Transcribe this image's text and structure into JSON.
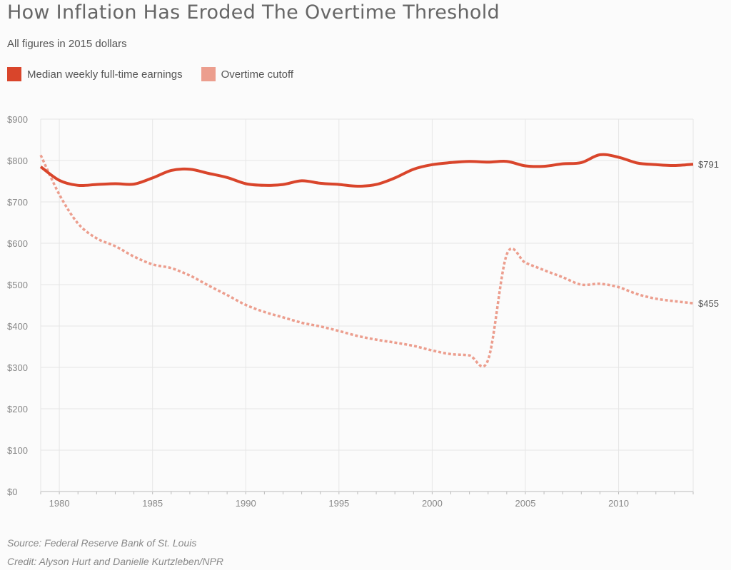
{
  "header": {
    "title": "How Inflation Has Eroded The Overtime Threshold",
    "subtitle": "All figures in 2015 dollars"
  },
  "footer": {
    "source": "Source: Federal Reserve Bank of St. Louis",
    "credit": "Credit: Alyson Hurt and Danielle Kurtzleben/NPR"
  },
  "colors": {
    "earnings": "#d9452b",
    "cutoff": "#ec9e8e",
    "grid": "#e6e6e6",
    "tick_text": "#888888"
  },
  "chart_data": {
    "type": "line",
    "title": "How Inflation Has Eroded The Overtime Threshold",
    "subtitle": "All figures in 2015 dollars",
    "xlabel": "",
    "ylabel": "",
    "xlim": [
      1979,
      2014
    ],
    "ylim": [
      0,
      900
    ],
    "x_ticks": [
      1980,
      1985,
      1990,
      1995,
      2000,
      2005,
      2010
    ],
    "x_tick_labels": [
      "1980",
      "1985",
      "1990",
      "1995",
      "2000",
      "2005",
      "2010"
    ],
    "y_ticks": [
      0,
      100,
      200,
      300,
      400,
      500,
      600,
      700,
      800,
      900
    ],
    "y_tick_labels": [
      "$0",
      "$100",
      "$200",
      "$300",
      "$400",
      "$500",
      "$600",
      "$700",
      "$800",
      "$900"
    ],
    "grid": true,
    "legend_position": "top-left",
    "series": [
      {
        "name": "Median weekly full-time earnings",
        "style": "solid",
        "end_label": "$791",
        "x": [
          1979,
          1980,
          1981,
          1982,
          1983,
          1984,
          1985,
          1986,
          1987,
          1988,
          1989,
          1990,
          1991,
          1992,
          1993,
          1994,
          1995,
          1996,
          1997,
          1998,
          1999,
          2000,
          2001,
          2002,
          2003,
          2004,
          2005,
          2006,
          2007,
          2008,
          2009,
          2010,
          2011,
          2012,
          2013,
          2014
        ],
        "values": [
          785,
          752,
          740,
          742,
          744,
          743,
          758,
          776,
          779,
          769,
          759,
          744,
          740,
          742,
          751,
          745,
          742,
          738,
          742,
          758,
          779,
          790,
          795,
          798,
          796,
          798,
          787,
          786,
          792,
          795,
          814,
          808,
          794,
          790,
          788,
          791
        ]
      },
      {
        "name": "Overtime cutoff",
        "style": "dashed",
        "end_label": "$455",
        "x": [
          1979,
          1980,
          1981,
          1982,
          1983,
          1984,
          1985,
          1986,
          1987,
          1988,
          1989,
          1990,
          1991,
          1992,
          1993,
          1994,
          1995,
          1996,
          1997,
          1998,
          1999,
          2000,
          2001,
          2002,
          2003,
          2004,
          2005,
          2006,
          2007,
          2008,
          2009,
          2010,
          2011,
          2012,
          2013,
          2014
        ],
        "values": [
          813,
          718,
          648,
          612,
          593,
          568,
          549,
          540,
          522,
          498,
          475,
          451,
          434,
          421,
          408,
          399,
          388,
          376,
          367,
          360,
          352,
          341,
          332,
          329,
          318,
          573,
          553,
          535,
          518,
          500,
          502,
          494,
          477,
          466,
          460,
          455
        ]
      }
    ]
  }
}
